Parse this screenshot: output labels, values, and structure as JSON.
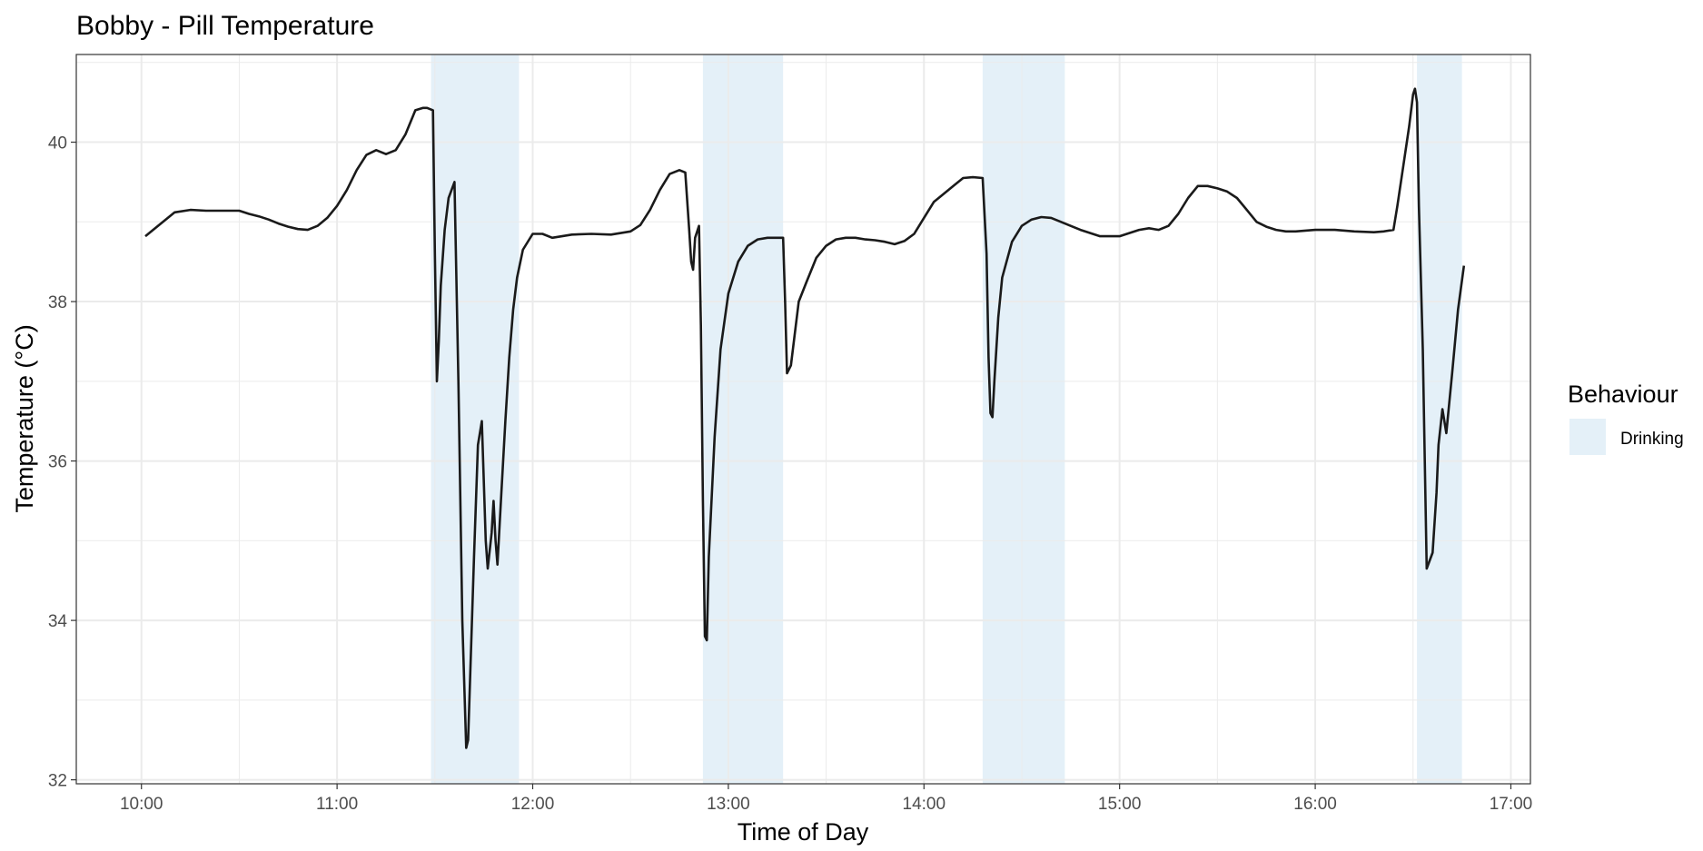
{
  "chart_data": {
    "type": "line",
    "title": "Bobby - Pill Temperature",
    "xlabel": "Time of Day",
    "ylabel": "Temperature (°C)",
    "x_unit": "hours",
    "xlim": [
      9.667,
      17.1
    ],
    "ylim": [
      31.95,
      41.1
    ],
    "x_ticks": [
      {
        "value": 10,
        "label": "10:00"
      },
      {
        "value": 11,
        "label": "11:00"
      },
      {
        "value": 12,
        "label": "12:00"
      },
      {
        "value": 13,
        "label": "13:00"
      },
      {
        "value": 14,
        "label": "14:00"
      },
      {
        "value": 15,
        "label": "15:00"
      },
      {
        "value": 16,
        "label": "16:00"
      },
      {
        "value": 17,
        "label": "17:00"
      }
    ],
    "y_ticks": [
      {
        "value": 32,
        "label": "32"
      },
      {
        "value": 34,
        "label": "34"
      },
      {
        "value": 36,
        "label": "36"
      },
      {
        "value": 38,
        "label": "38"
      },
      {
        "value": 40,
        "label": "40"
      }
    ],
    "grid": true,
    "legend": {
      "title": "Behaviour",
      "position": "right",
      "entries": [
        {
          "label": "Drinking",
          "color": "#e4f0f8"
        }
      ]
    },
    "colors": {
      "line": "#1a1a1a",
      "band": "#e4f0f8",
      "grid": "#ebebeb",
      "panel_border": "#333333"
    },
    "bands": [
      {
        "label": "Drinking",
        "start": 11.48,
        "end": 11.93
      },
      {
        "label": "Drinking",
        "start": 12.87,
        "end": 13.28
      },
      {
        "label": "Drinking",
        "start": 14.3,
        "end": 14.72
      },
      {
        "label": "Drinking",
        "start": 16.52,
        "end": 16.75
      }
    ],
    "series": [
      {
        "x": [
          10.02,
          10.17,
          10.25,
          10.33,
          10.5,
          10.55,
          10.6,
          10.65,
          10.7,
          10.75,
          10.8,
          10.85,
          10.9,
          10.95,
          11.0,
          11.05,
          11.1,
          11.15,
          11.2,
          11.25,
          11.3,
          11.35,
          11.4,
          11.44,
          11.46,
          11.49,
          11.5,
          11.51,
          11.52,
          11.53,
          11.55,
          11.57,
          11.6,
          11.62,
          11.64,
          11.66,
          11.67,
          11.7,
          11.72,
          11.74,
          11.76,
          11.77,
          11.79,
          11.8,
          11.81,
          11.82,
          11.84,
          11.86,
          11.88,
          11.9,
          11.92,
          11.95,
          12.0,
          12.05,
          12.1,
          12.2,
          12.3,
          12.4,
          12.5,
          12.55,
          12.6,
          12.65,
          12.7,
          12.75,
          12.78,
          12.8,
          12.81,
          12.82,
          12.83,
          12.85,
          12.86,
          12.87,
          12.88,
          12.89,
          12.9,
          12.93,
          12.96,
          13.0,
          13.05,
          13.1,
          13.15,
          13.2,
          13.28,
          13.29,
          13.3,
          13.32,
          13.36,
          13.4,
          13.45,
          13.5,
          13.55,
          13.6,
          13.65,
          13.7,
          13.75,
          13.8,
          13.85,
          13.9,
          13.95,
          14.0,
          14.05,
          14.1,
          14.15,
          14.2,
          14.25,
          14.3,
          14.32,
          14.33,
          14.34,
          14.35,
          14.36,
          14.38,
          14.4,
          14.45,
          14.5,
          14.55,
          14.6,
          14.65,
          14.7,
          14.75,
          14.8,
          14.9,
          15.0,
          15.05,
          15.1,
          15.15,
          15.2,
          15.25,
          15.3,
          15.35,
          15.4,
          15.45,
          15.5,
          15.55,
          15.6,
          15.65,
          15.7,
          15.75,
          15.8,
          15.85,
          15.9,
          16.0,
          16.1,
          16.2,
          16.3,
          16.35,
          16.4,
          16.42,
          16.45,
          16.48,
          16.5,
          16.51,
          16.52,
          16.53,
          16.55,
          16.57,
          16.6,
          16.62,
          16.63,
          16.65,
          16.67,
          16.7,
          16.73,
          16.76
        ],
        "y": [
          38.82,
          39.12,
          39.15,
          39.14,
          39.14,
          39.1,
          39.07,
          39.03,
          38.98,
          38.94,
          38.91,
          38.9,
          38.95,
          39.05,
          39.2,
          39.4,
          39.65,
          39.84,
          39.9,
          39.85,
          39.9,
          40.1,
          40.4,
          40.43,
          40.43,
          40.4,
          38.6,
          37.0,
          37.5,
          38.2,
          38.9,
          39.3,
          39.5,
          37.0,
          34.0,
          32.4,
          32.5,
          34.8,
          36.2,
          36.5,
          35.0,
          34.65,
          35.1,
          35.5,
          35.0,
          34.7,
          35.6,
          36.5,
          37.3,
          37.9,
          38.3,
          38.65,
          38.85,
          38.85,
          38.8,
          38.84,
          38.85,
          38.84,
          38.88,
          38.96,
          39.15,
          39.4,
          39.6,
          39.65,
          39.62,
          38.9,
          38.5,
          38.4,
          38.8,
          38.95,
          37.7,
          35.5,
          33.8,
          33.75,
          34.8,
          36.3,
          37.4,
          38.1,
          38.5,
          38.7,
          38.78,
          38.8,
          38.8,
          38.0,
          37.1,
          37.2,
          38.0,
          38.25,
          38.55,
          38.7,
          38.78,
          38.8,
          38.8,
          38.78,
          38.77,
          38.75,
          38.72,
          38.76,
          38.85,
          39.05,
          39.25,
          39.35,
          39.45,
          39.55,
          39.56,
          39.55,
          38.6,
          37.3,
          36.6,
          36.55,
          37.0,
          37.8,
          38.3,
          38.75,
          38.95,
          39.03,
          39.06,
          39.05,
          39.0,
          38.95,
          38.9,
          38.82,
          38.82,
          38.86,
          38.9,
          38.92,
          38.9,
          38.95,
          39.1,
          39.3,
          39.45,
          39.45,
          39.42,
          39.38,
          39.3,
          39.15,
          39.0,
          38.94,
          38.9,
          38.88,
          38.88,
          38.9,
          38.9,
          38.88,
          38.87,
          38.88,
          38.9,
          39.2,
          39.7,
          40.2,
          40.6,
          40.67,
          40.5,
          39.2,
          37.4,
          34.65,
          34.85,
          35.6,
          36.2,
          36.65,
          36.35,
          37.1,
          37.9,
          38.45
        ]
      }
    ]
  }
}
